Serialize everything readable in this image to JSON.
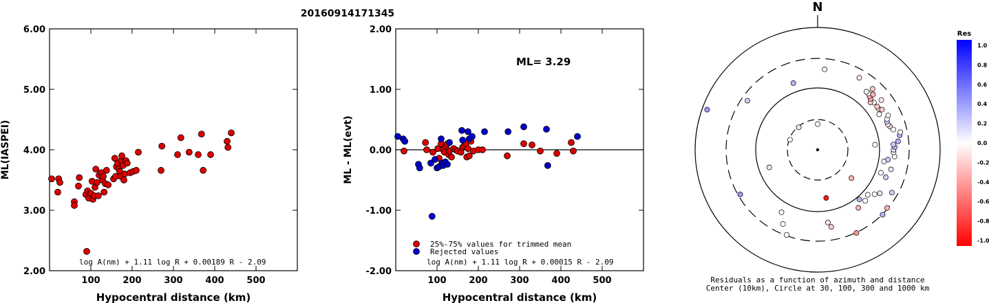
{
  "title": "20160914171345",
  "chart_data": [
    {
      "type": "scatter",
      "xlabel": "Hypocentral distance (km)",
      "ylabel": "ML(IASPEI)",
      "xlim": [
        0,
        600
      ],
      "ylim": [
        2.0,
        6.0
      ],
      "x_ticks": [
        "100",
        "200",
        "300",
        "400",
        "500"
      ],
      "y_ticks": [
        "2.00",
        "3.00",
        "4.00",
        "5.00",
        "6.00"
      ],
      "formula": "log A(nm) + 1.11 log R + 0.00189 R - 2.09",
      "marker_color": "#dd0000",
      "points": [
        [
          5,
          3.52
        ],
        [
          20,
          3.3
        ],
        [
          22,
          3.52
        ],
        [
          25,
          3.46
        ],
        [
          60,
          3.14
        ],
        [
          60,
          3.08
        ],
        [
          70,
          3.4
        ],
        [
          72,
          3.54
        ],
        [
          88,
          3.26
        ],
        [
          90,
          2.32
        ],
        [
          92,
          3.32
        ],
        [
          95,
          3.2
        ],
        [
          100,
          3.28
        ],
        [
          103,
          3.48
        ],
        [
          105,
          3.18
        ],
        [
          108,
          3.24
        ],
        [
          110,
          3.38
        ],
        [
          112,
          3.68
        ],
        [
          115,
          3.46
        ],
        [
          118,
          3.24
        ],
        [
          120,
          3.58
        ],
        [
          125,
          3.62
        ],
        [
          128,
          3.5
        ],
        [
          130,
          3.56
        ],
        [
          132,
          3.3
        ],
        [
          135,
          3.44
        ],
        [
          138,
          3.66
        ],
        [
          142,
          3.42
        ],
        [
          155,
          3.52
        ],
        [
          158,
          3.86
        ],
        [
          160,
          3.56
        ],
        [
          162,
          3.72
        ],
        [
          165,
          3.78
        ],
        [
          168,
          3.68
        ],
        [
          170,
          3.64
        ],
        [
          172,
          3.56
        ],
        [
          174,
          3.82
        ],
        [
          175,
          3.9
        ],
        [
          178,
          3.74
        ],
        [
          180,
          3.5
        ],
        [
          182,
          3.6
        ],
        [
          185,
          3.82
        ],
        [
          188,
          3.78
        ],
        [
          195,
          3.62
        ],
        [
          202,
          3.64
        ],
        [
          210,
          3.66
        ],
        [
          215,
          3.96
        ],
        [
          270,
          3.66
        ],
        [
          272,
          4.06
        ],
        [
          310,
          3.92
        ],
        [
          318,
          4.2
        ],
        [
          338,
          3.96
        ],
        [
          360,
          3.92
        ],
        [
          368,
          4.26
        ],
        [
          372,
          3.66
        ],
        [
          390,
          3.92
        ],
        [
          430,
          4.14
        ],
        [
          432,
          4.04
        ],
        [
          440,
          4.28
        ]
      ]
    },
    {
      "type": "scatter",
      "xlabel": "Hypocentral distance (km)",
      "ylabel": "ML - ML(evt)",
      "xlim": [
        0,
        600
      ],
      "ylim": [
        -2.0,
        2.0
      ],
      "x_ticks": [
        "100",
        "200",
        "300",
        "400",
        "500"
      ],
      "y_ticks": [
        "-2.00",
        "-1.00",
        "0.00",
        "1.00",
        "2.00"
      ],
      "annotation": "ML= 3.29",
      "formula": "log A(nm) + 1.11 log R + 0.00015 R - 2.09",
      "series": [
        {
          "name": "25%-75% values for trimmed mean",
          "color": "#dd0000",
          "points": [
            [
              20,
              -0.02
            ],
            [
              72,
              0.12
            ],
            [
              75,
              0.0
            ],
            [
              90,
              -0.04
            ],
            [
              102,
              0.02
            ],
            [
              105,
              -0.14
            ],
            [
              110,
              0.1
            ],
            [
              115,
              0.0
            ],
            [
              118,
              -0.04
            ],
            [
              122,
              0.06
            ],
            [
              125,
              0.1
            ],
            [
              128,
              -0.08
            ],
            [
              130,
              -0.02
            ],
            [
              135,
              -0.12
            ],
            [
              140,
              0.02
            ],
            [
              145,
              0.0
            ],
            [
              150,
              -0.02
            ],
            [
              158,
              -0.04
            ],
            [
              162,
              0.04
            ],
            [
              165,
              0.06
            ],
            [
              170,
              0.1
            ],
            [
              172,
              -0.12
            ],
            [
              175,
              0.02
            ],
            [
              178,
              -0.1
            ],
            [
              182,
              0.14
            ],
            [
              188,
              -0.02
            ],
            [
              200,
              0.0
            ],
            [
              210,
              0.0
            ],
            [
              270,
              -0.1
            ],
            [
              310,
              0.1
            ],
            [
              330,
              0.08
            ],
            [
              350,
              -0.02
            ],
            [
              390,
              -0.06
            ],
            [
              425,
              0.12
            ],
            [
              430,
              -0.02
            ]
          ]
        },
        {
          "name": "Rejected values",
          "color": "#0000cc",
          "points": [
            [
              5,
              0.22
            ],
            [
              18,
              0.18
            ],
            [
              22,
              0.14
            ],
            [
              55,
              -0.24
            ],
            [
              58,
              -0.3
            ],
            [
              85,
              -0.22
            ],
            [
              88,
              -1.1
            ],
            [
              95,
              -0.16
            ],
            [
              100,
              -0.3
            ],
            [
              105,
              -0.28
            ],
            [
              110,
              0.18
            ],
            [
              112,
              -0.22
            ],
            [
              115,
              -0.26
            ],
            [
              120,
              -0.2
            ],
            [
              125,
              -0.24
            ],
            [
              130,
              0.12
            ],
            [
              160,
              0.32
            ],
            [
              162,
              0.16
            ],
            [
              175,
              0.3
            ],
            [
              178,
              0.18
            ],
            [
              185,
              0.22
            ],
            [
              215,
              0.3
            ],
            [
              272,
              0.3
            ],
            [
              310,
              0.38
            ],
            [
              365,
              0.34
            ],
            [
              368,
              -0.26
            ],
            [
              440,
              0.22
            ]
          ]
        }
      ]
    },
    {
      "type": "scatter",
      "north_label": "N",
      "caption_line1": "Residuals as a function of azimuth and distance",
      "caption_line2": "Center (10km), Circle at 30, 100, 300 and 1000 km",
      "colorbar_title": "Res",
      "colorbar_ticks": [
        "1.0",
        "0.8",
        "0.6",
        "0.4",
        "0.2",
        "0.0",
        "-0.2",
        "-0.4",
        "-0.6",
        "-0.8",
        "-1.0"
      ],
      "colorbar_positive": "#0000ff",
      "colorbar_negative": "#ff0000",
      "points_polar": [
        [
          -20,
          0.58,
          0.3
        ],
        [
          5,
          0.66,
          0.0
        ],
        [
          30,
          0.68,
          -0.1
        ],
        [
          -55,
          0.7,
          0.2
        ],
        [
          -70,
          0.96,
          0.4
        ],
        [
          -40,
          0.24,
          0.1
        ],
        [
          0,
          0.21,
          0.0
        ],
        [
          -70,
          0.24,
          0.0
        ],
        [
          -110,
          0.42,
          0.1
        ],
        [
          -120,
          0.73,
          0.4
        ],
        [
          170,
          0.64,
          -0.2
        ],
        [
          172,
          0.6,
          -0.1
        ],
        [
          155,
          0.75,
          -0.4
        ],
        [
          145,
          0.58,
          -0.3
        ],
        [
          135,
          0.75,
          0.3
        ],
        [
          130,
          0.74,
          -0.3
        ],
        [
          120,
          0.7,
          0.2
        ],
        [
          125,
          0.62,
          0.1
        ],
        [
          128,
          0.59,
          0.0
        ],
        [
          132,
          0.55,
          0.0
        ],
        [
          140,
          0.53,
          0.3
        ],
        [
          137,
          0.57,
          0.0
        ],
        [
          -150,
          0.59,
          0.0
        ],
        [
          -155,
          0.67,
          0.0
        ],
        [
          -160,
          0.74,
          0.0
        ],
        [
          170,
          0.4,
          -0.9
        ],
        [
          112,
          0.6,
          0.2
        ],
        [
          110,
          0.55,
          0.0
        ],
        [
          105,
          0.62,
          0.1
        ],
        [
          100,
          0.55,
          0.0
        ],
        [
          98,
          0.58,
          0.2
        ],
        [
          95,
          0.63,
          0.0
        ],
        [
          92,
          0.62,
          0.0
        ],
        [
          90,
          0.62,
          0.1
        ],
        [
          88,
          0.63,
          0.3
        ],
        [
          86,
          0.62,
          0.2
        ],
        [
          84,
          0.66,
          0.3
        ],
        [
          80,
          0.68,
          0.3
        ],
        [
          78,
          0.69,
          0.0
        ],
        [
          75,
          0.64,
          0.0
        ],
        [
          72,
          0.62,
          -0.2
        ],
        [
          70,
          0.61,
          0.0
        ],
        [
          68,
          0.61,
          0.2
        ],
        [
          66,
          0.62,
          0.0
        ],
        [
          64,
          0.64,
          0.0
        ],
        [
          60,
          0.58,
          0.0
        ],
        [
          56,
          0.6,
          -0.1
        ],
        [
          54,
          0.6,
          -0.2
        ],
        [
          50,
          0.6,
          0.0
        ],
        [
          48,
          0.58,
          -0.2
        ],
        [
          46,
          0.6,
          -0.3
        ],
        [
          44,
          0.61,
          -0.3
        ],
        [
          42,
          0.62,
          0.0
        ],
        [
          40,
          0.62,
          0.0
        ],
        [
          42,
          0.67,
          -0.2
        ],
        [
          45,
          0.64,
          -0.3
        ],
        [
          52,
          0.66,
          -0.1
        ],
        [
          58,
          0.62,
          -0.2
        ],
        [
          85,
          0.47,
          0.0
        ],
        [
          130,
          0.36,
          -0.3
        ]
      ]
    }
  ]
}
